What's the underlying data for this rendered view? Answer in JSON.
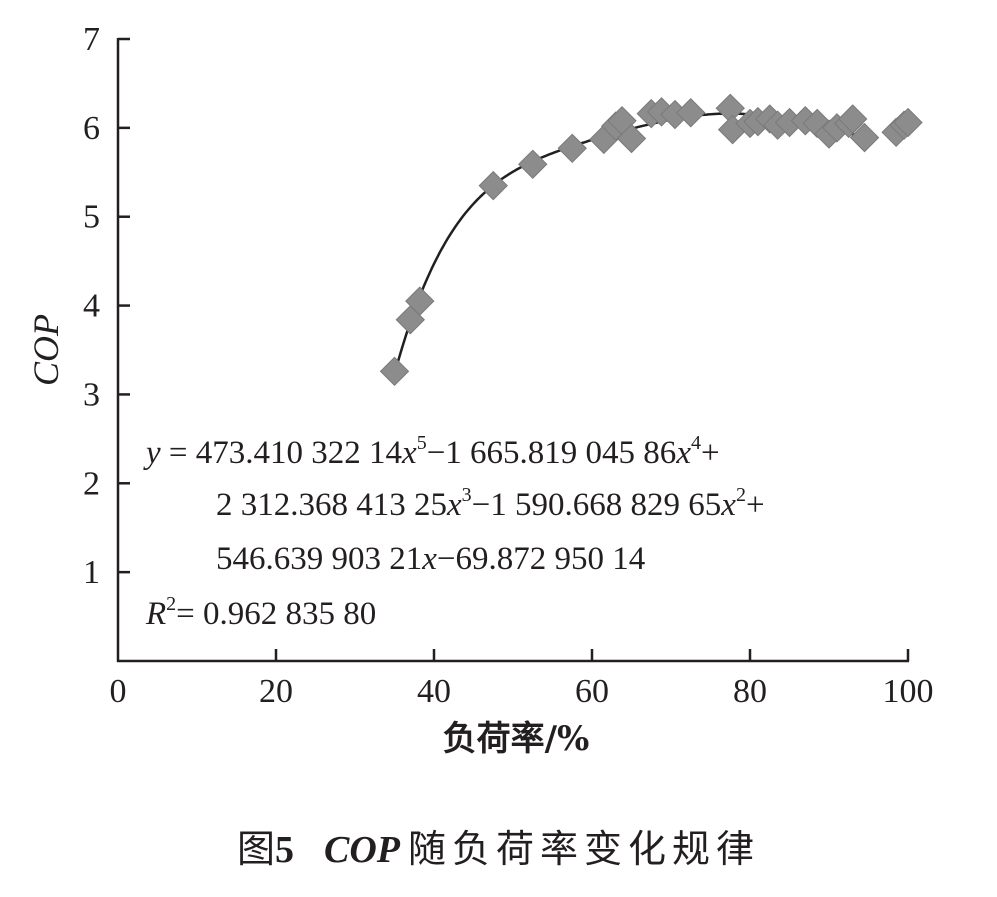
{
  "chart_data": {
    "type": "scatter",
    "title": "",
    "xlabel": "负荷率/%",
    "ylabel": "COP",
    "xlim": [
      0,
      100
    ],
    "ylim": [
      0,
      7
    ],
    "x_ticks": [
      "0",
      "20",
      "40",
      "60",
      "80",
      "100"
    ],
    "y_ticks": [
      "1",
      "2",
      "3",
      "4",
      "5",
      "6",
      "7"
    ],
    "grid": false,
    "legend": "none",
    "marker": "diamond",
    "marker_color": "#8c8c8c",
    "line_color": "#231f20",
    "points": [
      [
        35.0,
        3.26
      ],
      [
        37.0,
        3.84
      ],
      [
        38.2,
        4.05
      ],
      [
        47.5,
        5.35
      ],
      [
        52.5,
        5.59
      ],
      [
        57.5,
        5.77
      ],
      [
        61.5,
        5.87
      ],
      [
        63.0,
        6.02
      ],
      [
        63.8,
        6.08
      ],
      [
        65.0,
        5.88
      ],
      [
        67.5,
        6.16
      ],
      [
        68.8,
        6.18
      ],
      [
        70.5,
        6.15
      ],
      [
        72.5,
        6.17
      ],
      [
        77.5,
        6.22
      ],
      [
        77.8,
        5.98
      ],
      [
        80.0,
        6.05
      ],
      [
        81.0,
        6.07
      ],
      [
        82.5,
        6.1
      ],
      [
        83.5,
        6.03
      ],
      [
        85.0,
        6.06
      ],
      [
        87.0,
        6.08
      ],
      [
        88.5,
        6.05
      ],
      [
        90.0,
        5.93
      ],
      [
        91.0,
        6.0
      ],
      [
        92.5,
        6.05
      ],
      [
        93.0,
        6.1
      ],
      [
        94.5,
        5.89
      ],
      [
        98.5,
        5.95
      ],
      [
        99.5,
        6.03
      ],
      [
        100.0,
        6.06
      ]
    ],
    "fit": {
      "type": "polynomial",
      "degree": 5,
      "coefficients_ascending": [
        -69.87295014,
        546.63990321,
        -1590.66882965,
        2312.36841325,
        -1665.81904586,
        473.41032214
      ],
      "x_range": [
        35,
        95
      ]
    },
    "annotation": {
      "line1_y": "y",
      "line1_eq": " = 473.410 322 14",
      "line1_x5": "x",
      "line1_e5": "5",
      "line1_mid": "−1 665.819 045 86",
      "line1_x4": "x",
      "line1_e4": "4",
      "line1_end": "+",
      "line2_a": "2 312.368 413 25",
      "line2_x3": "x",
      "line2_e3": "3",
      "line2_mid": "−1 590.668 829 65",
      "line2_x2": "x",
      "line2_e2": "2",
      "line2_end": "+",
      "line3_a": "546.639 903 21",
      "line3_x": "x",
      "line3_end": "−69.872 950 14",
      "r2_r": "R",
      "r2_exp": "2",
      "r2_val": "= 0.962 835 80"
    }
  },
  "caption": {
    "fig_label": "图",
    "fig_number": "5",
    "cop": "COP",
    "title": "随负荷率变化规律"
  }
}
